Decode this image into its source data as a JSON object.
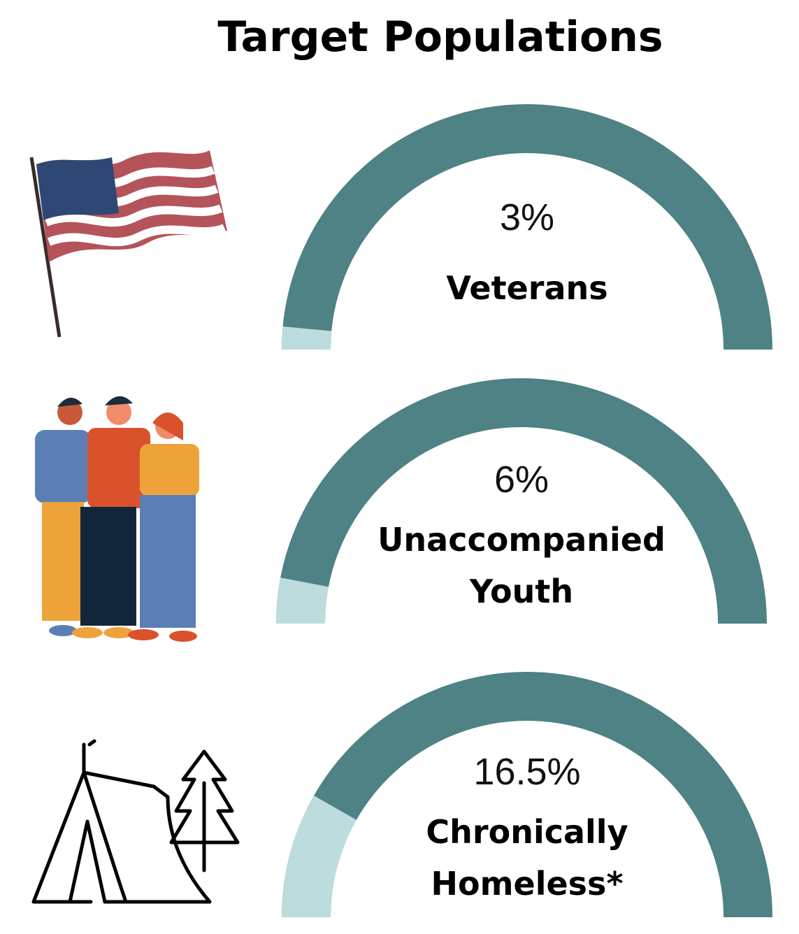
{
  "title": "Target Populations",
  "chart_data": [
    {
      "type": "gauge",
      "label": "Veterans",
      "value": 3,
      "value_label": "3%",
      "ylim": [
        0,
        100
      ],
      "color": "#bcdcdd",
      "track_color": "#4e8284"
    },
    {
      "type": "gauge",
      "label": "Unaccompanied Youth",
      "value": 6,
      "value_label": "6%",
      "ylim": [
        0,
        100
      ],
      "color": "#bcdcdd",
      "track_color": "#4e8284"
    },
    {
      "type": "gauge",
      "label": "Chronically Homeless*",
      "value": 16.5,
      "value_label": "16.5%",
      "ylim": [
        0,
        100
      ],
      "color": "#bcdcdd",
      "track_color": "#4e8284"
    }
  ]
}
